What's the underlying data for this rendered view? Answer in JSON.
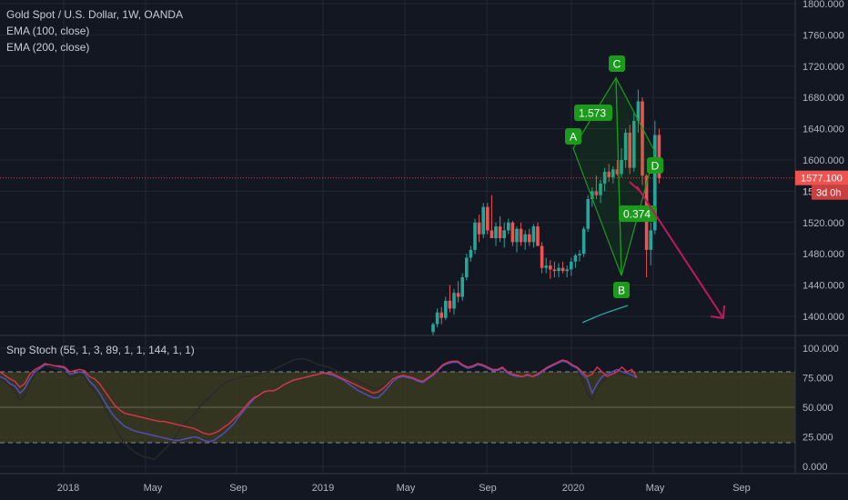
{
  "header": {
    "title": "Gold Spot / U.S. Dollar, 1W, OANDA",
    "indicators": [
      "EMA (100, close)",
      "EMA (200, close)"
    ]
  },
  "oscillator": {
    "title": "Snp Stoch (55, 1, 3, 89, 1, 1, 144, 1, 1)"
  },
  "price_axis": {
    "labels": [
      "1800.000",
      "1760.000",
      "1720.000",
      "1680.000",
      "1640.000",
      "1600.000",
      "1560.000",
      "1520.000",
      "1480.000",
      "1440.000",
      "1400.000"
    ],
    "current_price": "1577.100",
    "countdown": "3d 0h",
    "partial_label": "156"
  },
  "osc_axis": {
    "labels": [
      "100.000",
      "75.000",
      "50.000",
      "25.000",
      "0.000"
    ]
  },
  "time_axis": {
    "labels": [
      "2018",
      "May",
      "Sep",
      "2019",
      "May",
      "Sep",
      "2020",
      "May",
      "Sep"
    ]
  },
  "pattern": {
    "points": [
      "A",
      "B",
      "C",
      "D"
    ],
    "ratios": [
      "1.573",
      "0.374"
    ]
  },
  "colors": {
    "background": "#131722",
    "up": "#26a69a",
    "down": "#ef5350",
    "pattern": "#1b9b1b",
    "arrow": "#c2185b",
    "price_line": "#e04040",
    "band_fill": "#3f4020"
  },
  "chart_data": {
    "type": "candlestick",
    "timeframe": "1W",
    "symbol": "Gold Spot / U.S. Dollar",
    "price_range": [
      1380,
      1800
    ],
    "oscillator_range": [
      0,
      100
    ],
    "oscillator_levels": [
      20,
      80
    ],
    "harmonic_points": {
      "A": 1615,
      "B": 1452,
      "C": 1705,
      "D": 1610
    },
    "candles": [
      {
        "o": 1380,
        "h": 1392,
        "l": 1375,
        "c": 1390
      },
      {
        "o": 1390,
        "h": 1410,
        "l": 1386,
        "c": 1405
      },
      {
        "o": 1405,
        "h": 1412,
        "l": 1390,
        "c": 1398
      },
      {
        "o": 1398,
        "h": 1425,
        "l": 1395,
        "c": 1420
      },
      {
        "o": 1420,
        "h": 1440,
        "l": 1405,
        "c": 1410
      },
      {
        "o": 1410,
        "h": 1435,
        "l": 1402,
        "c": 1430
      },
      {
        "o": 1430,
        "h": 1445,
        "l": 1418,
        "c": 1425
      },
      {
        "o": 1425,
        "h": 1455,
        "l": 1420,
        "c": 1450
      },
      {
        "o": 1450,
        "h": 1480,
        "l": 1446,
        "c": 1475
      },
      {
        "o": 1475,
        "h": 1490,
        "l": 1470,
        "c": 1485
      },
      {
        "o": 1485,
        "h": 1525,
        "l": 1480,
        "c": 1520
      },
      {
        "o": 1520,
        "h": 1530,
        "l": 1495,
        "c": 1505
      },
      {
        "o": 1505,
        "h": 1545,
        "l": 1500,
        "c": 1540
      },
      {
        "o": 1540,
        "h": 1545,
        "l": 1505,
        "c": 1510
      },
      {
        "o": 1510,
        "h": 1555,
        "l": 1500,
        "c": 1500
      },
      {
        "o": 1500,
        "h": 1520,
        "l": 1490,
        "c": 1515
      },
      {
        "o": 1515,
        "h": 1528,
        "l": 1495,
        "c": 1500
      },
      {
        "o": 1500,
        "h": 1520,
        "l": 1488,
        "c": 1510
      },
      {
        "o": 1510,
        "h": 1525,
        "l": 1505,
        "c": 1520
      },
      {
        "o": 1520,
        "h": 1522,
        "l": 1490,
        "c": 1495
      },
      {
        "o": 1495,
        "h": 1515,
        "l": 1482,
        "c": 1512
      },
      {
        "o": 1512,
        "h": 1520,
        "l": 1490,
        "c": 1495
      },
      {
        "o": 1495,
        "h": 1510,
        "l": 1485,
        "c": 1505
      },
      {
        "o": 1505,
        "h": 1512,
        "l": 1490,
        "c": 1495
      },
      {
        "o": 1495,
        "h": 1518,
        "l": 1488,
        "c": 1515
      },
      {
        "o": 1515,
        "h": 1520,
        "l": 1490,
        "c": 1490
      },
      {
        "o": 1490,
        "h": 1495,
        "l": 1455,
        "c": 1462
      },
      {
        "o": 1462,
        "h": 1475,
        "l": 1455,
        "c": 1465
      },
      {
        "o": 1465,
        "h": 1472,
        "l": 1448,
        "c": 1460
      },
      {
        "o": 1460,
        "h": 1470,
        "l": 1450,
        "c": 1458
      },
      {
        "o": 1458,
        "h": 1468,
        "l": 1450,
        "c": 1462
      },
      {
        "o": 1462,
        "h": 1470,
        "l": 1455,
        "c": 1458
      },
      {
        "o": 1458,
        "h": 1465,
        "l": 1450,
        "c": 1460
      },
      {
        "o": 1460,
        "h": 1475,
        "l": 1452,
        "c": 1470
      },
      {
        "o": 1470,
        "h": 1480,
        "l": 1462,
        "c": 1478
      },
      {
        "o": 1478,
        "h": 1485,
        "l": 1470,
        "c": 1480
      },
      {
        "o": 1480,
        "h": 1515,
        "l": 1476,
        "c": 1512
      },
      {
        "o": 1512,
        "h": 1555,
        "l": 1508,
        "c": 1550
      },
      {
        "o": 1550,
        "h": 1565,
        "l": 1540,
        "c": 1560
      },
      {
        "o": 1560,
        "h": 1580,
        "l": 1550,
        "c": 1555
      },
      {
        "o": 1555,
        "h": 1575,
        "l": 1545,
        "c": 1570
      },
      {
        "o": 1570,
        "h": 1590,
        "l": 1560,
        "c": 1585
      },
      {
        "o": 1585,
        "h": 1595,
        "l": 1572,
        "c": 1578
      },
      {
        "o": 1578,
        "h": 1592,
        "l": 1570,
        "c": 1588
      },
      {
        "o": 1588,
        "h": 1600,
        "l": 1580,
        "c": 1582
      },
      {
        "o": 1582,
        "h": 1615,
        "l": 1578,
        "c": 1600
      },
      {
        "o": 1600,
        "h": 1640,
        "l": 1590,
        "c": 1635
      },
      {
        "o": 1635,
        "h": 1645,
        "l": 1582,
        "c": 1590
      },
      {
        "o": 1590,
        "h": 1660,
        "l": 1585,
        "c": 1650
      },
      {
        "o": 1650,
        "h": 1690,
        "l": 1635,
        "c": 1675
      },
      {
        "o": 1675,
        "h": 1680,
        "l": 1568,
        "c": 1580
      },
      {
        "o": 1580,
        "h": 1582,
        "l": 1450,
        "c": 1485
      },
      {
        "o": 1485,
        "h": 1520,
        "l": 1465,
        "c": 1510
      },
      {
        "o": 1510,
        "h": 1650,
        "l": 1505,
        "c": 1632
      },
      {
        "o": 1632,
        "h": 1640,
        "l": 1570,
        "c": 1577
      }
    ],
    "ema_100": [
      1392,
      1397,
      1402,
      1406,
      1410,
      1414
    ],
    "oscillator_series": [
      {
        "name": "fast",
        "values": [
          80,
          77,
          74,
          72,
          67,
          70,
          78,
          82,
          84,
          87,
          86,
          85,
          85,
          84,
          80,
          81,
          82,
          81,
          76,
          74,
          70,
          64,
          58,
          52,
          48,
          45,
          44,
          43,
          42,
          41,
          40,
          39,
          38,
          38,
          37,
          36,
          35,
          34,
          33,
          32,
          30,
          28,
          27,
          28,
          30,
          33,
          36,
          40,
          44,
          49,
          54,
          58,
          60,
          63,
          64,
          64,
          66,
          69,
          71,
          73,
          74,
          75,
          76,
          77,
          78,
          79,
          79,
          78,
          76,
          74,
          72,
          70,
          68,
          66,
          64,
          62,
          63,
          66,
          70,
          74,
          76,
          77,
          76,
          75,
          73,
          72,
          75,
          78,
          82,
          86,
          88,
          89,
          89,
          86,
          84,
          85,
          87,
          86,
          84,
          82,
          82,
          84,
          80,
          78,
          77,
          76,
          78,
          76,
          78,
          81,
          84,
          86,
          88,
          90,
          89,
          86,
          84,
          80,
          76,
          78,
          84,
          80,
          76,
          78,
          80,
          84,
          80,
          82,
          75
        ]
      },
      {
        "name": "mid",
        "values": [
          76,
          74,
          70,
          68,
          62,
          66,
          74,
          80,
          83,
          86,
          86,
          85,
          84,
          83,
          78,
          79,
          80,
          79,
          72,
          68,
          62,
          55,
          48,
          42,
          38,
          34,
          32,
          30,
          29,
          28,
          27,
          26,
          25,
          24,
          23,
          22,
          22,
          23,
          24,
          25,
          24,
          22,
          21,
          22,
          25,
          28,
          32,
          36,
          42,
          47,
          52,
          57,
          60,
          63,
          64,
          64,
          66,
          69,
          71,
          73,
          74,
          75,
          76,
          77,
          78,
          79,
          78,
          77,
          75,
          73,
          70,
          67,
          64,
          62,
          60,
          58,
          58,
          62,
          67,
          72,
          75,
          76,
          75,
          74,
          72,
          71,
          74,
          77,
          81,
          85,
          87,
          88,
          88,
          85,
          83,
          84,
          86,
          85,
          83,
          81,
          81,
          83,
          79,
          77,
          76,
          76,
          77,
          76,
          77,
          80,
          83,
          85,
          87,
          89,
          88,
          85,
          83,
          78,
          74,
          62,
          70,
          76,
          78,
          80,
          82,
          80,
          79,
          77,
          75
        ]
      },
      {
        "name": "slow",
        "values": [
          74,
          72,
          68,
          64,
          56,
          60,
          70,
          78,
          82,
          85,
          84,
          83,
          82,
          80,
          75,
          76,
          78,
          76,
          68,
          64,
          58,
          50,
          42,
          34,
          26,
          20,
          16,
          12,
          10,
          8,
          7,
          6,
          10,
          14,
          18,
          24,
          30,
          36,
          40,
          44,
          50,
          54,
          58,
          62,
          66,
          70,
          72,
          74,
          75,
          76,
          76,
          77,
          78,
          79,
          80,
          82,
          84,
          86,
          88,
          90,
          91,
          91,
          90,
          88,
          86,
          85,
          84,
          82,
          80,
          78,
          76,
          74,
          72,
          70,
          68,
          66,
          66,
          68,
          70,
          73,
          75,
          76,
          75,
          74,
          72,
          71,
          74,
          77,
          81,
          85,
          87,
          88,
          88,
          85,
          83,
          84,
          86,
          85,
          83,
          81,
          81,
          83,
          79,
          77,
          76,
          76,
          77,
          76,
          77,
          80,
          83,
          85,
          87,
          89,
          88,
          85,
          83,
          74,
          62,
          56,
          65,
          72,
          76,
          78,
          80,
          78,
          77,
          76,
          75
        ]
      }
    ]
  }
}
